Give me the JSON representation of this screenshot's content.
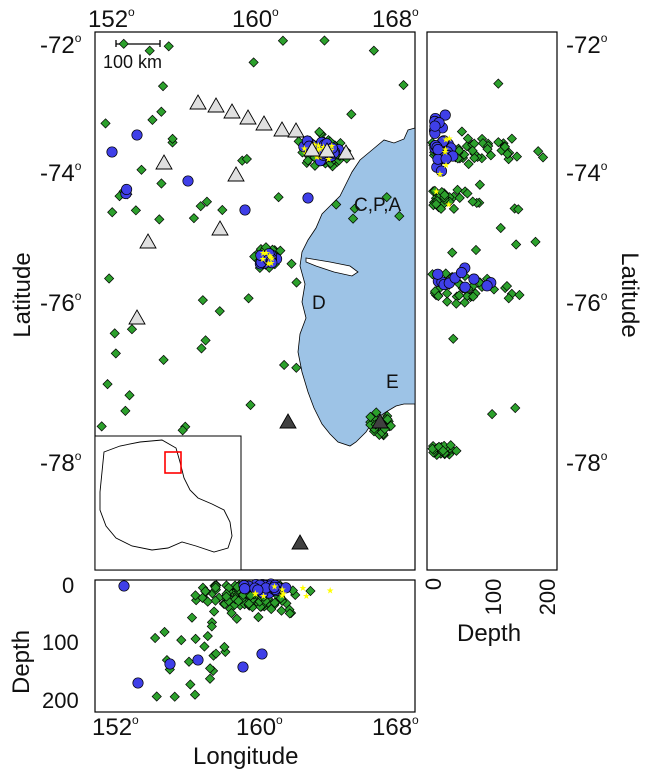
{
  "map": {
    "top_lon_ticks": [
      "152",
      "160",
      "168"
    ],
    "bottom_lon_ticks": [
      "152",
      "160",
      "168"
    ],
    "left_lat_ticks": [
      "-72",
      "-74",
      "-76",
      "-78"
    ],
    "right_lat_ticks": [
      "-72",
      "-74",
      "-76",
      "-78"
    ],
    "degree_symbol": "o",
    "scale_bar_label": "100 km",
    "station_labels": [
      "C,P,A",
      "D",
      "E"
    ],
    "latitude_label": "Latitude",
    "longitude_label": "Longitude",
    "depth_label": "Depth",
    "depth_ticks_bottom": [
      "0",
      "100",
      "200"
    ],
    "depth_ticks_right": [
      "0",
      "100",
      "200"
    ]
  },
  "colors": {
    "ocean_land": "#ffffff",
    "ice_shelf": "#9dc3e6",
    "small_quake": "#2ca02c",
    "large_quake": "#3f3fe8",
    "star": "#ffff00",
    "station_light": "#e0e0e0",
    "station_dark": "#404040",
    "inset_box": "#ff0000"
  }
}
